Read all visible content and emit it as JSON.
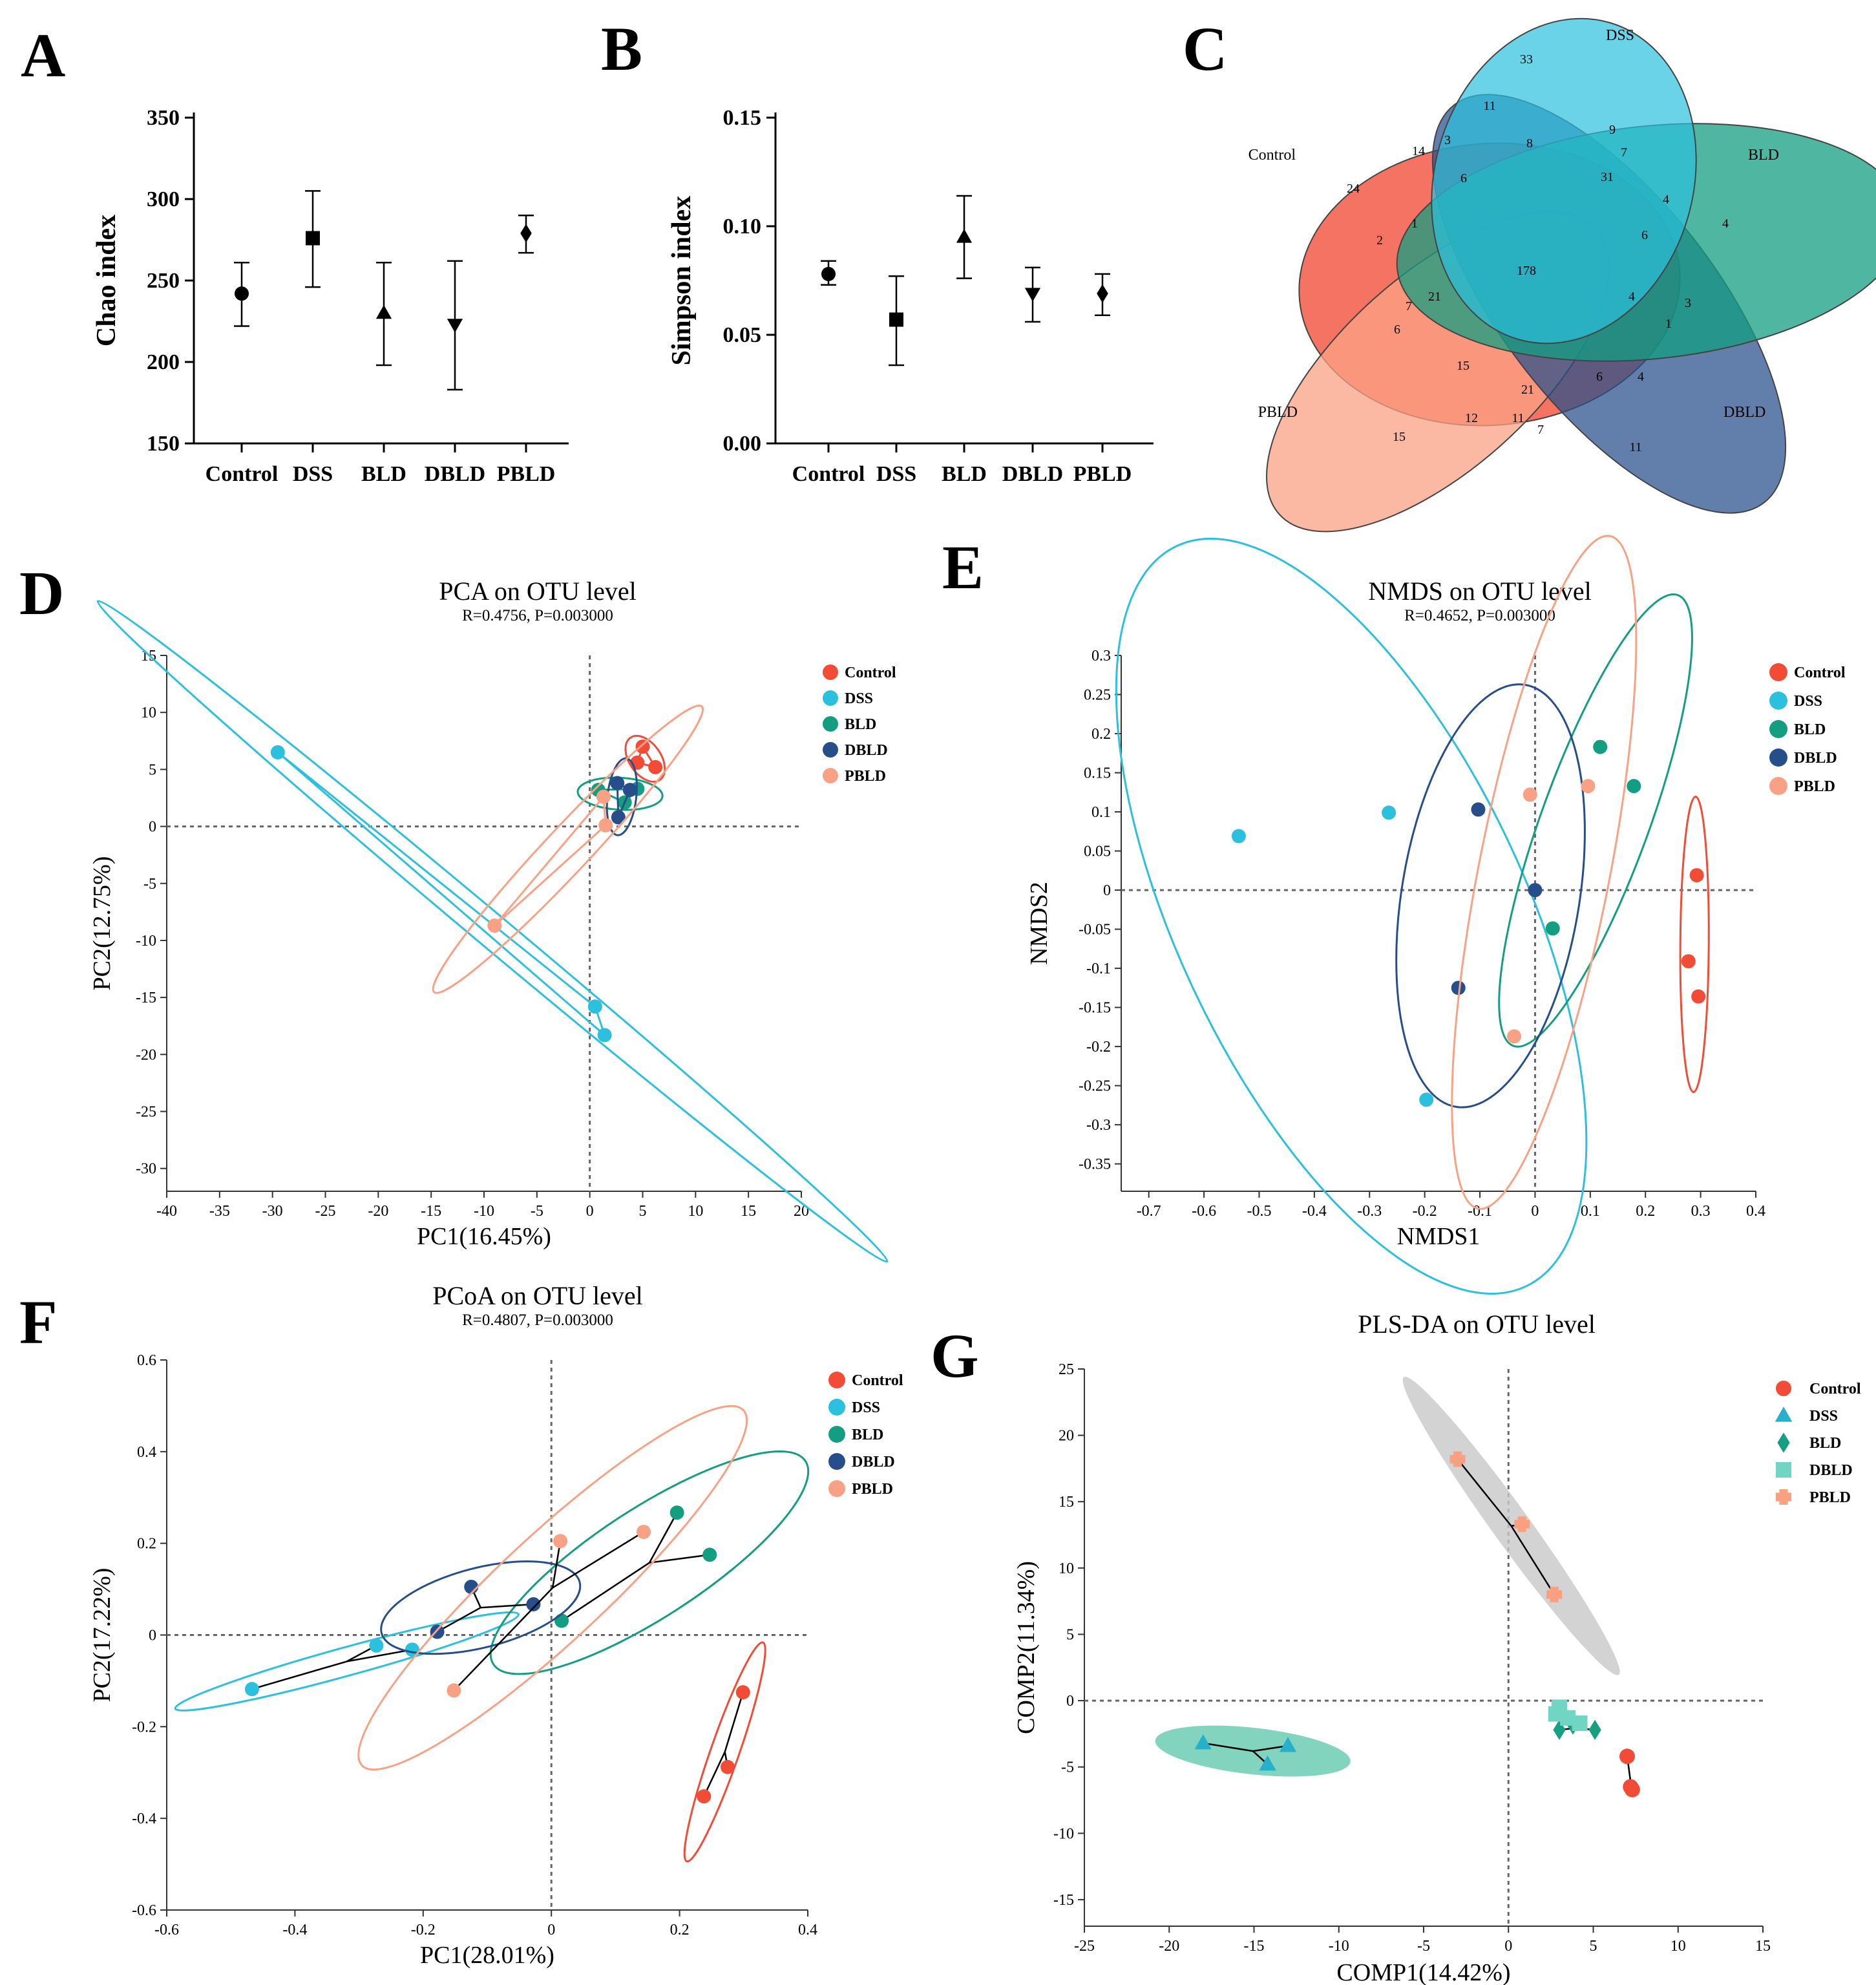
{
  "panel_letters": [
    "A",
    "B",
    "C",
    "D",
    "E",
    "F",
    "G"
  ],
  "colors": {
    "Control": "#F24B36",
    "DSS": "#2BC0DD",
    "BLD": "#139E81",
    "DBLD": "#264E8A",
    "PBLD": "#F9A185",
    "G_Control": "#F24B36",
    "G_DSS": "#26B0C9",
    "G_BLD": "#16A082",
    "G_DBLD": "#70D6C3",
    "G_PBLD": "#F8A07F"
  },
  "chart_data": [
    {
      "id": "A",
      "type": "scatter",
      "variant": "mean-errorbar",
      "ylabel": "Chao index",
      "ylim": [
        150,
        350
      ],
      "yticks": [
        150,
        200,
        250,
        300,
        350
      ],
      "categories": [
        "Control",
        "DSS",
        "BLD",
        "DBLD",
        "PBLD"
      ],
      "markers": [
        "circle",
        "square",
        "triangle-up",
        "triangle-down",
        "diamond"
      ],
      "values": [
        242,
        276,
        230,
        223,
        279
      ],
      "err_low": [
        222,
        246,
        198,
        183,
        267
      ],
      "err_high": [
        261,
        305,
        261,
        262,
        290
      ]
    },
    {
      "id": "B",
      "type": "scatter",
      "variant": "mean-errorbar",
      "ylabel": "Simpson index",
      "ylim": [
        0,
        0.15
      ],
      "yticks": [
        "0.00",
        "0.05",
        "0.10",
        "0.15"
      ],
      "categories": [
        "Control",
        "DSS",
        "BLD",
        "DBLD",
        "PBLD"
      ],
      "markers": [
        "circle",
        "square",
        "triangle-up",
        "triangle-down",
        "diamond"
      ],
      "values": [
        0.078,
        0.057,
        0.095,
        0.069,
        0.069
      ],
      "err_low": [
        0.073,
        0.036,
        0.076,
        0.056,
        0.059
      ],
      "err_high": [
        0.084,
        0.077,
        0.114,
        0.081,
        0.078
      ]
    },
    {
      "id": "C",
      "type": "venn",
      "sets": [
        "Control",
        "DSS",
        "BLD",
        "DBLD",
        "PBLD"
      ],
      "counts": [
        "33",
        "11",
        "9",
        "3",
        "14",
        "8",
        "7",
        "31",
        "4",
        "6",
        "24",
        "1",
        "2",
        "178",
        "6",
        "4",
        "4",
        "7",
        "21",
        "3",
        "1",
        "6",
        "15",
        "21",
        "6",
        "4",
        "12",
        "11",
        "7",
        "15",
        "11"
      ]
    },
    {
      "id": "D",
      "type": "scatter",
      "title": "PCA on OTU level",
      "subtitle": "R=0.4756, P=0.003000",
      "xlabel": "PC1(16.45%)",
      "ylabel": "PC2(12.75%)",
      "xlim": [
        -40,
        20
      ],
      "ylim": [
        -32,
        15
      ],
      "xticks": [
        -40,
        -35,
        -30,
        -25,
        -20,
        -15,
        -10,
        -5,
        0,
        5,
        10,
        15,
        20
      ],
      "yticks": [
        15,
        10,
        5,
        0,
        -5,
        -10,
        -15,
        -20,
        -25,
        -30
      ],
      "legend": [
        "Control",
        "DSS",
        "BLD",
        "DBLD",
        "PBLD"
      ],
      "series": [
        {
          "name": "Control",
          "x": [
            5.0,
            6.2,
            4.5
          ],
          "y": [
            7.0,
            5.2,
            5.6
          ]
        },
        {
          "name": "DSS",
          "x": [
            -29.5,
            0.5,
            1.4
          ],
          "y": [
            6.5,
            -15.8,
            -18.3
          ]
        },
        {
          "name": "BLD",
          "x": [
            0.8,
            4.5,
            3.3
          ],
          "y": [
            3.2,
            3.3,
            2.1
          ]
        },
        {
          "name": "DBLD",
          "x": [
            2.6,
            3.8,
            2.7
          ],
          "y": [
            3.8,
            3.2,
            0.8
          ]
        },
        {
          "name": "PBLD",
          "x": [
            -9.0,
            1.3,
            1.5
          ],
          "y": [
            -8.7,
            2.6,
            0.1
          ]
        }
      ]
    },
    {
      "id": "E",
      "type": "scatter",
      "title": "NMDS on OTU level",
      "subtitle": "R=0.4652, P=0.003000",
      "xlabel": "NMDS1",
      "ylabel": "NMDS2",
      "xlim": [
        -0.75,
        0.4
      ],
      "ylim": [
        -0.385,
        0.3
      ],
      "xticks": [
        "-0.7",
        "-0.6",
        "-0.5",
        "-0.4",
        "-0.3",
        "-0.2",
        "-0.1",
        "0",
        "0.1",
        "0.2",
        "0.3",
        "0.4"
      ],
      "yticks": [
        "0.3",
        "0.25",
        "0.2",
        "0.15",
        "0.1",
        "0.05",
        "0",
        "-0.05",
        "-0.1",
        "-0.15",
        "-0.2",
        "-0.25",
        "-0.3",
        "-0.35"
      ],
      "legend": [
        "Control",
        "DSS",
        "BLD",
        "DBLD",
        "PBLD"
      ],
      "series": [
        {
          "name": "Control",
          "x": [
            0.293,
            0.278,
            0.296
          ],
          "y": [
            0.019,
            -0.091,
            -0.136
          ]
        },
        {
          "name": "DSS",
          "x": [
            -0.537,
            -0.265,
            -0.197
          ],
          "y": [
            0.069,
            0.099,
            -0.268
          ]
        },
        {
          "name": "BLD",
          "x": [
            0.118,
            0.179,
            0.032
          ],
          "y": [
            0.183,
            0.133,
            -0.049
          ]
        },
        {
          "name": "DBLD",
          "x": [
            -0.103,
            0.0,
            -0.139
          ],
          "y": [
            0.103,
            0.0,
            -0.125
          ]
        },
        {
          "name": "PBLD",
          "x": [
            -0.009,
            0.096,
            -0.038
          ],
          "y": [
            0.122,
            0.133,
            -0.187
          ]
        }
      ]
    },
    {
      "id": "F",
      "type": "scatter",
      "title": "PCoA on OTU level",
      "subtitle": "R=0.4807, P=0.003000",
      "xlabel": "PC1(28.01%)",
      "ylabel": "PC2(17.22%)",
      "xlim": [
        -0.6,
        0.4
      ],
      "ylim": [
        -0.6,
        0.6
      ],
      "xticks": [
        "-0.6",
        "-0.4",
        "-0.2",
        "0",
        "0.2",
        "0.4"
      ],
      "yticks": [
        "0.6",
        "0.4",
        "0.2",
        "0",
        "-0.2",
        "-0.4",
        "-0.6"
      ],
      "legend": [
        "Control",
        "DSS",
        "BLD",
        "DBLD",
        "PBLD"
      ],
      "series": [
        {
          "name": "Control",
          "x": [
            0.299,
            0.275,
            0.238
          ],
          "y": [
            -0.125,
            -0.288,
            -0.352
          ]
        },
        {
          "name": "DSS",
          "x": [
            -0.467,
            -0.273,
            -0.217
          ],
          "y": [
            -0.118,
            -0.023,
            -0.032
          ]
        },
        {
          "name": "BLD",
          "x": [
            0.196,
            0.247,
            0.016
          ],
          "y": [
            0.267,
            0.175,
            0.031
          ]
        },
        {
          "name": "DBLD",
          "x": [
            -0.125,
            -0.028,
            -0.178
          ],
          "y": [
            0.105,
            0.067,
            0.007
          ]
        },
        {
          "name": "PBLD",
          "x": [
            0.144,
            0.014,
            -0.152
          ],
          "y": [
            0.225,
            0.205,
            -0.121
          ]
        }
      ]
    },
    {
      "id": "G",
      "type": "scatter",
      "title": "PLS-DA on OTU level",
      "xlabel": "COMP1(14.42%)",
      "ylabel": "COMP2(11.34%)",
      "xlim": [
        -25,
        15
      ],
      "ylim": [
        -17,
        25
      ],
      "xticks": [
        -25,
        -20,
        -15,
        -10,
        -5,
        0,
        5,
        10,
        15
      ],
      "yticks": [
        25,
        20,
        15,
        10,
        5,
        0,
        -5,
        -10,
        -15
      ],
      "legend": [
        "Control",
        "DSS",
        "BLD",
        "DBLD",
        "PBLD"
      ],
      "legend_markers": [
        "circle",
        "triangle",
        "diamond",
        "square",
        "cross"
      ],
      "series": [
        {
          "name": "Control",
          "marker": "circle",
          "x": [
            7.0,
            7.2,
            7.3
          ],
          "y": [
            -4.2,
            -6.5,
            -6.7
          ]
        },
        {
          "name": "DSS",
          "marker": "triangle",
          "x": [
            -18.0,
            -13.0,
            -14.2
          ],
          "y": [
            -3.2,
            -3.4,
            -4.8
          ]
        },
        {
          "name": "BLD",
          "marker": "diamond",
          "x": [
            3.0,
            3.8,
            5.1
          ],
          "y": [
            -2.2,
            -1.8,
            -2.2
          ]
        },
        {
          "name": "DBLD",
          "marker": "square",
          "x": [
            2.8,
            3.0,
            3.5,
            4.2
          ],
          "y": [
            -1.0,
            -0.5,
            -1.3,
            -1.7
          ]
        },
        {
          "name": "PBLD",
          "marker": "cross",
          "x": [
            -3.0,
            0.8,
            2.7
          ],
          "y": [
            18.2,
            13.3,
            8.0
          ]
        }
      ]
    }
  ]
}
